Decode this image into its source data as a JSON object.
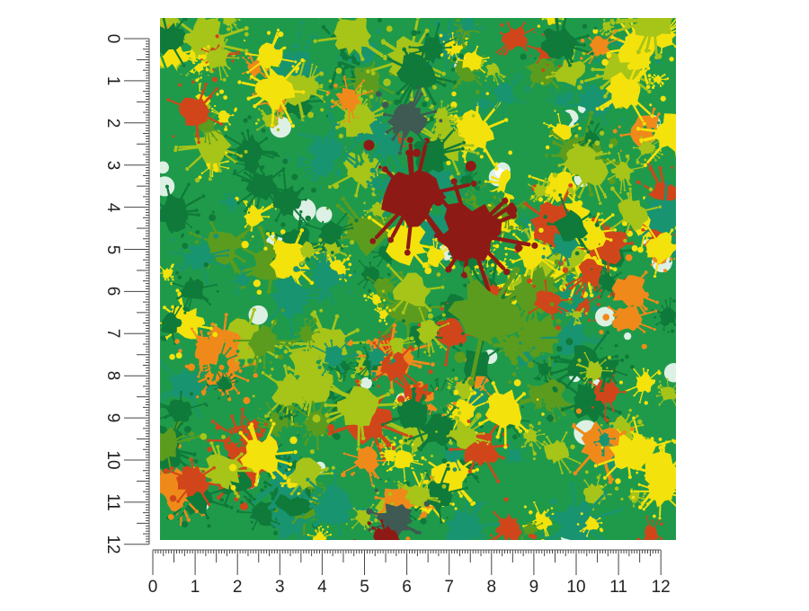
{
  "product": {
    "description": "Paint splatter pattern swatch on green background with inch rulers",
    "pattern_name": "green paint splatter",
    "palette": {
      "background_green": "#1f9a4a",
      "dark_green": "#0f7a3a",
      "teal_green": "#189470",
      "lime": "#a7c419",
      "olive_green": "#5b9c1e",
      "yellow": "#f4e20c",
      "orange": "#ef8a1a",
      "red_orange": "#d0461a",
      "dark_red": "#8e1a16",
      "slate": "#3f5a52",
      "white": "#ffffff"
    }
  },
  "vertical_ruler": {
    "unit": "inches",
    "labels": [
      "0",
      "1",
      "2",
      "3",
      "4",
      "5",
      "6",
      "7",
      "8",
      "9",
      "10",
      "11",
      "12"
    ]
  },
  "horizontal_ruler": {
    "unit": "inches",
    "labels": [
      "0",
      "1",
      "2",
      "3",
      "4",
      "5",
      "6",
      "7",
      "8",
      "9",
      "10",
      "11",
      "12"
    ]
  }
}
